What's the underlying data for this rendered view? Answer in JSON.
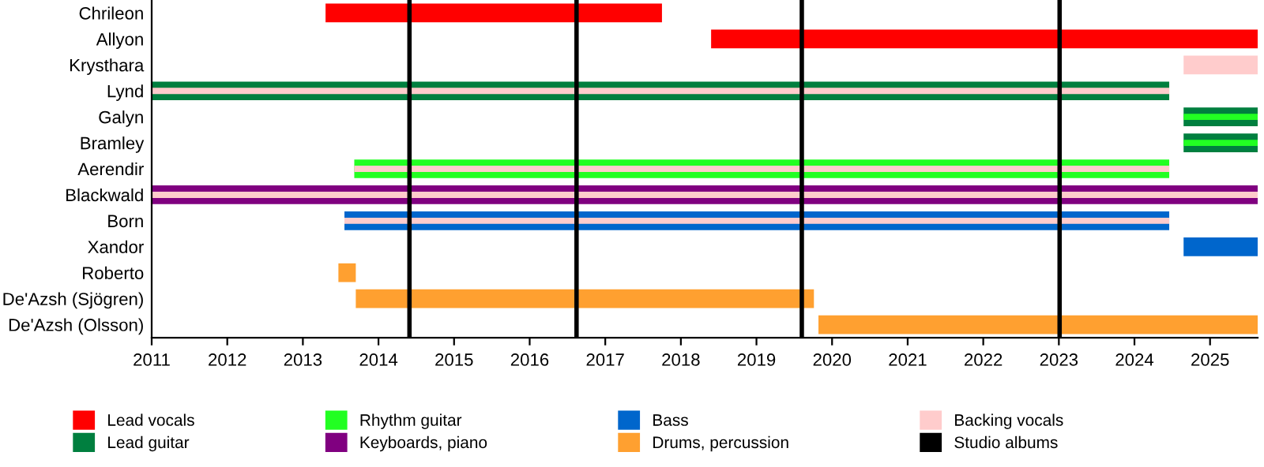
{
  "chart_data": {
    "type": "bar",
    "orientation": "horizontal",
    "categories": [
      "Chrileon",
      "Allyon",
      "Krysthara",
      "Lynd",
      "Galyn",
      "Bramley",
      "Aerendir",
      "Blackwald",
      "Born",
      "Xandor",
      "Roberto",
      "De'Azsh (Sjögren)",
      "De'Azsh (Olsson)"
    ],
    "series": [
      {
        "name": "Lead vocals",
        "color": "#ff0000",
        "values": [
          4.45,
          7.23,
          null,
          null,
          null,
          null,
          null,
          null,
          null,
          null,
          null,
          null,
          null
        ],
        "base": [
          2013.3,
          2018.4,
          null,
          null,
          null,
          null,
          null,
          null,
          null,
          null,
          null,
          null,
          null
        ]
      },
      {
        "name": "Lead guitar",
        "color": "#007f3f",
        "values": [
          null,
          null,
          null,
          13.46,
          0.98,
          0.98,
          null,
          null,
          null,
          null,
          null,
          null,
          null
        ],
        "base": [
          null,
          null,
          null,
          2011,
          2024.65,
          2024.65,
          null,
          null,
          null,
          null,
          null,
          null,
          null
        ]
      },
      {
        "name": "Rhythm guitar",
        "color": "#22ff22",
        "values": [
          null,
          null,
          null,
          null,
          0.98,
          0.98,
          10.78,
          null,
          null,
          null,
          null,
          null,
          null
        ],
        "base": [
          null,
          null,
          null,
          null,
          2024.65,
          2024.65,
          2013.68,
          null,
          null,
          null,
          null,
          null,
          null
        ]
      },
      {
        "name": "Keyboards, piano",
        "color": "#800080",
        "values": [
          null,
          null,
          null,
          null,
          null,
          null,
          null,
          14.63,
          null,
          null,
          null,
          null,
          null
        ],
        "base": [
          null,
          null,
          null,
          null,
          null,
          null,
          null,
          2011,
          null,
          null,
          null,
          null,
          null
        ]
      },
      {
        "name": "Bass",
        "color": "#0066cc",
        "values": [
          null,
          null,
          null,
          null,
          null,
          null,
          null,
          null,
          10.91,
          0.98,
          null,
          null,
          null
        ],
        "base": [
          null,
          null,
          null,
          null,
          null,
          null,
          null,
          null,
          2013.55,
          2024.65,
          null,
          null,
          null
        ]
      },
      {
        "name": "Drums, percussion",
        "color": "#ffa030",
        "values": [
          null,
          null,
          null,
          null,
          null,
          null,
          null,
          null,
          null,
          null,
          0.23,
          6.06,
          5.81
        ],
        "base": [
          null,
          null,
          null,
          null,
          null,
          null,
          null,
          null,
          null,
          null,
          2013.47,
          2013.7,
          2019.82
        ]
      },
      {
        "name": "Backing vocals",
        "color": "#ffcccc",
        "values": [
          null,
          null,
          0.98,
          13.46,
          null,
          null,
          10.78,
          14.63,
          10.91,
          null,
          null,
          null,
          null
        ],
        "base": [
          null,
          null,
          2024.65,
          2011,
          null,
          null,
          2013.68,
          2011,
          2013.55,
          null,
          null,
          null,
          null
        ]
      }
    ],
    "ref_lines": [
      {
        "axis": "x",
        "value": 2014.41,
        "color": "#000000",
        "label": "Studio albums"
      },
      {
        "axis": "x",
        "value": 2016.62,
        "color": "#000000"
      },
      {
        "axis": "x",
        "value": 2019.6,
        "color": "#000000"
      },
      {
        "axis": "x",
        "value": 2023.01,
        "color": "#000000"
      }
    ],
    "xlim": [
      2011,
      2025.63
    ],
    "xticks": [
      2011,
      2012,
      2013,
      2014,
      2015,
      2016,
      2017,
      2018,
      2019,
      2020,
      2021,
      2022,
      2023,
      2024,
      2025
    ],
    "grid": false,
    "legend": "bottom"
  }
}
